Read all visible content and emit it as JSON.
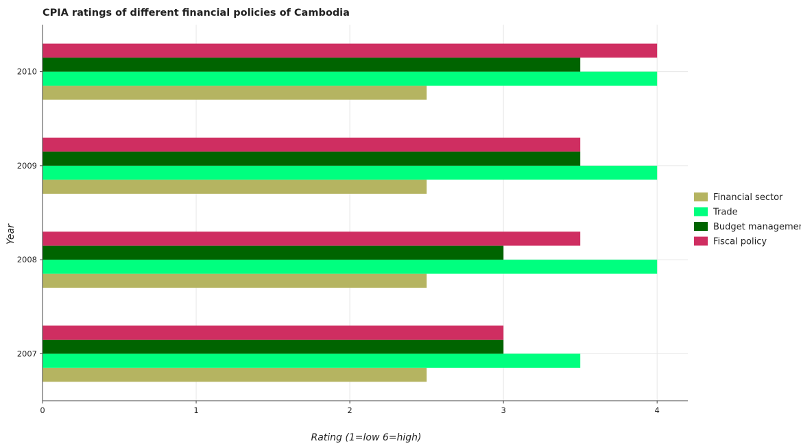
{
  "chart_data": {
    "type": "bar",
    "orientation": "horizontal",
    "title": "CPIA ratings of different financial policies of Cambodia",
    "xlabel": "Rating (1=low 6=high)",
    "ylabel": "Year",
    "categories": [
      "2007",
      "2008",
      "2009",
      "2010"
    ],
    "xlim": [
      0,
      4.2
    ],
    "xticks": [
      "0",
      "1",
      "2",
      "3",
      "4"
    ],
    "grid": true,
    "legend_position": "right",
    "series": [
      {
        "name": "Financial sector",
        "color": "#b5b461",
        "values": [
          2.5,
          2.5,
          2.5,
          2.5
        ]
      },
      {
        "name": "Trade",
        "color": "#00ff7f",
        "values": [
          3.5,
          4.0,
          4.0,
          4.0
        ]
      },
      {
        "name": "Budget management",
        "color": "#006400",
        "values": [
          3.0,
          3.0,
          3.5,
          3.5
        ]
      },
      {
        "name": "Fiscal policy",
        "color": "#cf2e61",
        "values": [
          3.0,
          3.5,
          3.5,
          4.0
        ]
      }
    ]
  }
}
